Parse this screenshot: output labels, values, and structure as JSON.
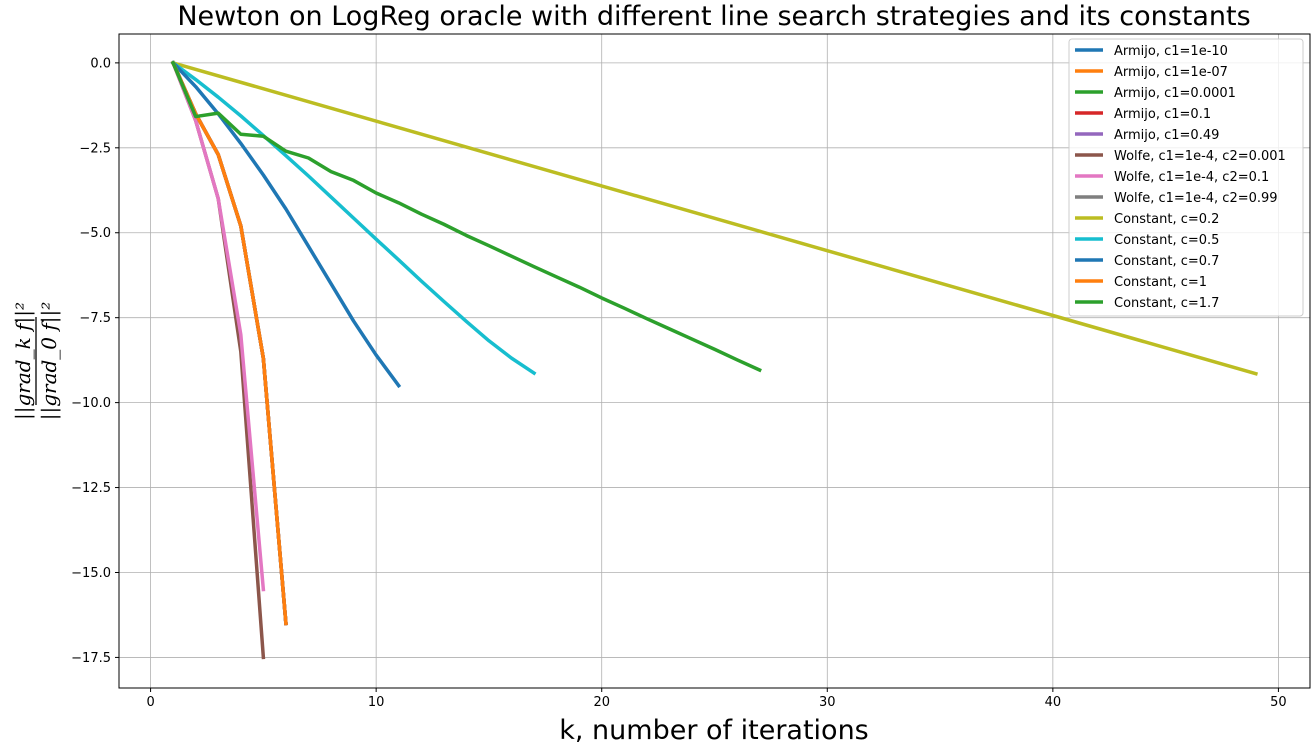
{
  "chart_data": {
    "type": "line",
    "title": "Newton on LogReg oracle with different line search strategies and its constants",
    "xlabel": "k, number of iterations",
    "ylabel": {
      "numerator": "||grad_k f||²",
      "denominator": "||grad_0 f||²"
    },
    "xlim": [
      -1.4,
      51.4
    ],
    "ylim": [
      -18.4,
      0.85
    ],
    "x_ticks": [
      0,
      10,
      20,
      30,
      40,
      50
    ],
    "y_ticks": [
      0.0,
      -2.5,
      -5.0,
      -7.5,
      -10.0,
      -12.5,
      -15.0,
      -17.5
    ],
    "y_tick_labels": [
      "0.0",
      "−2.5",
      "−5.0",
      "−7.5",
      "−10.0",
      "−12.5",
      "−15.0",
      "−17.5"
    ],
    "grid": true,
    "legend_position": "top-right",
    "series": [
      {
        "name": "Armijo, c1=1e-10",
        "color": "#1f77b4",
        "x": [
          1,
          2,
          3,
          4,
          5,
          6
        ],
        "y": [
          0.0,
          -1.5,
          -2.7,
          -4.8,
          -8.7,
          -16.5
        ]
      },
      {
        "name": "Armijo, c1=1e-07",
        "color": "#ff7f0e",
        "x": [
          1,
          2,
          3,
          4,
          5,
          6
        ],
        "y": [
          0.0,
          -1.5,
          -2.7,
          -4.8,
          -8.7,
          -16.5
        ]
      },
      {
        "name": "Armijo, c1=0.0001",
        "color": "#2ca02c",
        "x": [
          1,
          2,
          3,
          4,
          5,
          6
        ],
        "y": [
          0.0,
          -1.5,
          -2.7,
          -4.8,
          -8.7,
          -16.5
        ]
      },
      {
        "name": "Armijo, c1=0.1",
        "color": "#d62728",
        "x": [
          1,
          2,
          3,
          4,
          5,
          6
        ],
        "y": [
          0.0,
          -1.5,
          -2.7,
          -4.8,
          -8.7,
          -16.5
        ]
      },
      {
        "name": "Armijo, c1=0.49",
        "color": "#9467bd",
        "x": [
          1,
          2,
          3,
          4,
          5,
          6
        ],
        "y": [
          0.0,
          -1.5,
          -2.7,
          -4.8,
          -8.7,
          -16.5
        ]
      },
      {
        "name": "Wolfe, c1=1e-4, c2=0.001",
        "color": "#8c564b",
        "x": [
          1,
          2,
          3,
          4,
          5
        ],
        "y": [
          0.0,
          -1.7,
          -4.0,
          -8.5,
          -17.5
        ]
      },
      {
        "name": "Wolfe, c1=1e-4, c2=0.1",
        "color": "#e377c2",
        "x": [
          1,
          2,
          3,
          4,
          5
        ],
        "y": [
          0.0,
          -1.7,
          -4.0,
          -8.0,
          -15.5
        ]
      },
      {
        "name": "Wolfe, c1=1e-4, c2=0.99",
        "color": "#7f7f7f",
        "x": [
          1,
          2,
          3,
          4,
          5,
          6
        ],
        "y": [
          0.0,
          -1.5,
          -2.7,
          -4.8,
          -8.7,
          -16.5
        ]
      },
      {
        "name": "Constant, c=0.2",
        "color": "#bcbd22",
        "x": [
          1,
          49
        ],
        "y": [
          0.0,
          -9.15
        ]
      },
      {
        "name": "Constant, c=0.5",
        "color": "#17becf",
        "x": [
          1,
          2,
          3,
          4,
          5,
          6,
          7,
          8,
          9,
          10,
          11,
          12,
          13,
          14,
          15,
          16,
          17
        ],
        "y": [
          0.0,
          -0.49,
          -1.01,
          -1.56,
          -2.14,
          -2.73,
          -3.33,
          -3.95,
          -4.57,
          -5.19,
          -5.8,
          -6.42,
          -7.02,
          -7.61,
          -8.18,
          -8.69,
          -9.13
        ]
      },
      {
        "name": "Constant, c=0.7",
        "color": "#1f77b4",
        "x": [
          1,
          2,
          3,
          4,
          5,
          6,
          7,
          8,
          9,
          10,
          11
        ],
        "y": [
          0.0,
          -0.7,
          -1.5,
          -2.37,
          -3.3,
          -4.3,
          -5.4,
          -6.5,
          -7.6,
          -8.6,
          -9.5
        ]
      },
      {
        "name": "Constant, c=1",
        "color": "#ff7f0e",
        "x": [
          1,
          2,
          3,
          4,
          5,
          6
        ],
        "y": [
          0.0,
          -1.5,
          -2.7,
          -4.8,
          -8.7,
          -16.5
        ]
      },
      {
        "name": "Constant, c=1.7",
        "color": "#2ca02c",
        "x": [
          1,
          2,
          3,
          4,
          5,
          6,
          7,
          8,
          9,
          10,
          11,
          12,
          13,
          14,
          15,
          16,
          17,
          18,
          19,
          20,
          21,
          22,
          23,
          24,
          25,
          26,
          27
        ],
        "y": [
          0.0,
          -1.58,
          -1.48,
          -2.1,
          -2.16,
          -2.6,
          -2.8,
          -3.2,
          -3.46,
          -3.83,
          -4.12,
          -4.45,
          -4.75,
          -5.08,
          -5.38,
          -5.69,
          -6.0,
          -6.3,
          -6.6,
          -6.92,
          -7.22,
          -7.53,
          -7.83,
          -8.13,
          -8.43,
          -8.74,
          -9.04
        ]
      }
    ]
  }
}
